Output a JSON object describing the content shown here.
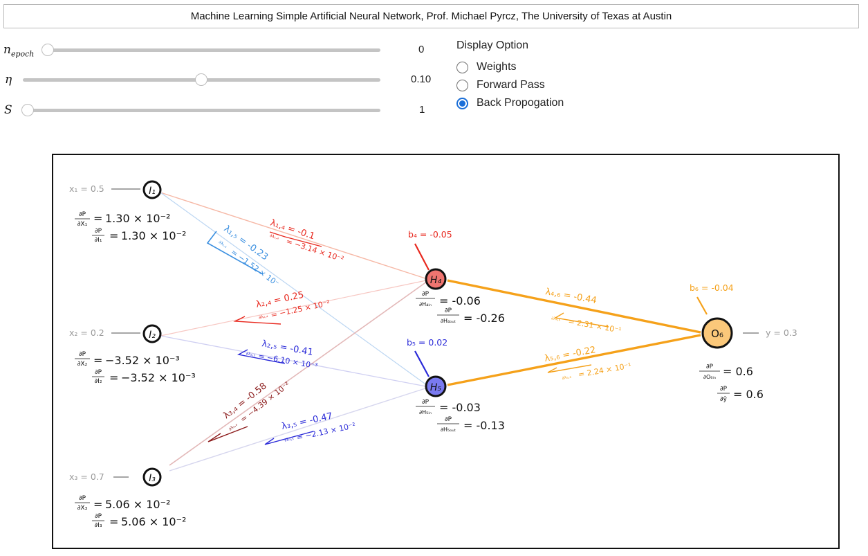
{
  "title": "Machine Learning Simple Artificial Neural Network, Prof. Michael Pyrcz, The University of Texas at Austin",
  "sliders": [
    {
      "symbol": "n",
      "subscript": "epoch",
      "value": "0",
      "fraction": 0.0
    },
    {
      "symbol": "η",
      "subscript": "",
      "value": "0.10",
      "fraction": 0.5
    },
    {
      "symbol": "S",
      "subscript": "",
      "value": "1",
      "fraction": 0.0
    }
  ],
  "display_option": {
    "title": "Display Option",
    "options": [
      "Weights",
      "Forward Pass",
      "Back Propogation"
    ],
    "selected": "Back Propogation"
  },
  "colors": {
    "red": "#e8281e",
    "blue": "#2a2ad8",
    "orange": "#f5a11a",
    "lightblue": "#3a8fe0",
    "darkred": "#8b1a1a"
  },
  "network": {
    "inputs": [
      {
        "node": "I₁",
        "x_label": "x₁ = 0.5",
        "dP_dX": "1.30 × 10⁻²",
        "dP_dI": "1.30 × 10⁻²",
        "dX": "∂X₁",
        "dI": "∂I₁"
      },
      {
        "node": "I₂",
        "x_label": "x₂ = 0.2",
        "dP_dX": "−3.52 × 10⁻³",
        "dP_dI": "−3.52 × 10⁻³",
        "dX": "∂X₂",
        "dI": "∂I₂"
      },
      {
        "node": "I₃",
        "x_label": "x₃ = 0.7",
        "dP_dX": "5.06 × 10⁻²",
        "dP_dI": "5.06 × 10⁻²",
        "dX": "∂X₃",
        "dI": "∂I₃"
      }
    ],
    "hidden": [
      {
        "node": "H₄",
        "bias": "b₄ = -0.05",
        "dH_in": "= -0.06",
        "dH_out": "= -0.26",
        "in_lbl": "∂H₄ᵢₙ",
        "out_lbl": "∂H₄ₒᵤₜ"
      },
      {
        "node": "H₅",
        "bias": "b₅ = 0.02",
        "dH_in": "= -0.03",
        "dH_out": "= -0.13",
        "in_lbl": "∂H₅ᵢₙ",
        "out_lbl": "∂H₅ₒᵤₜ"
      }
    ],
    "output": {
      "node": "O₆",
      "bias": "b₆ = -0.04",
      "y_label": "y = 0.3",
      "dO_in": "= 0.6",
      "dy": "= 0.6",
      "in_lbl": "∂O₆ᵢₙ",
      "y_lbl": "∂ŷ"
    },
    "dP": "∂P",
    "weights": [
      {
        "id": "1,4",
        "lambda": "λ₁,₄ = -0.1",
        "grad": "= −3.14 × 10⁻²",
        "wlbl": "∂λ₁,₄"
      },
      {
        "id": "1,5",
        "lambda": "λ₁,₅ = -0.23",
        "grad": "= −1.52 × 10⁻",
        "wlbl": "∂λ₁,₅"
      },
      {
        "id": "2,4",
        "lambda": "λ₂,₄ = 0.25",
        "grad": "= −1.25 × 10⁻²",
        "wlbl": "∂λ₂,₄"
      },
      {
        "id": "2,5",
        "lambda": "λ₂,₅ = -0.41",
        "grad": "= −6.10 × 10⁻³",
        "wlbl": "∂λ₂,₅"
      },
      {
        "id": "3,4",
        "lambda": "λ₃,₄ = -0.58",
        "grad": "= −4.39 × 10⁻²",
        "wlbl": "∂λ₃,₄"
      },
      {
        "id": "3,5",
        "lambda": "λ₃,₅ = -0.47",
        "grad": "= −2.13 × 10⁻²",
        "wlbl": "∂λ₃,₅"
      },
      {
        "id": "4,6",
        "lambda": "λ₄,₆ = -0.44",
        "grad": "= 2.31 × 10⁻¹",
        "wlbl": "∂λ₄,₆"
      },
      {
        "id": "5,6",
        "lambda": "λ₅,₆ = -0.22",
        "grad": "= 2.24 × 10⁻¹",
        "wlbl": "∂λ₅,₆"
      }
    ]
  }
}
